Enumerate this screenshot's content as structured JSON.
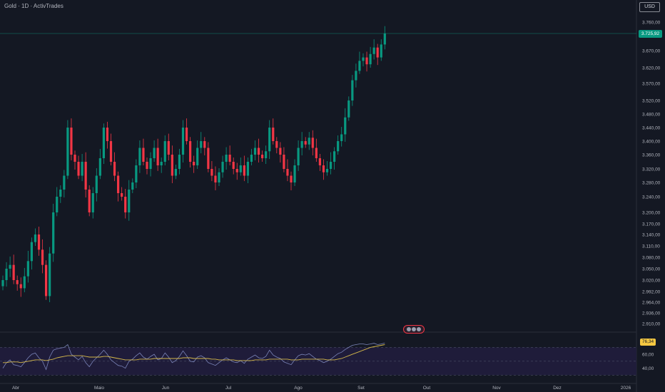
{
  "header": {
    "title": "Gold · 1D · ActivTrades"
  },
  "toolbar": {
    "currency": "USD"
  },
  "last_price_label": "3.725,92",
  "rsi_value_label": "76,34",
  "colors": {
    "background": "#141823",
    "up": "#089981",
    "down": "#f23645",
    "rsi_line": "#7a84b8",
    "rsi_ma": "#d6b94a",
    "rsi_band": "#1f1c3a",
    "price_line": "#089981"
  },
  "icons": {
    "event_badge": "flag-icons"
  },
  "chart_data": {
    "type": "candlestick",
    "y_ticks": [
      "3.760,00",
      "3.725,92",
      "3.670,00",
      "3.620,00",
      "3.570,00",
      "3.520,00",
      "3.480,00",
      "3.440,00",
      "3.400,00",
      "3.360,00",
      "3.320,00",
      "3.280,00",
      "3.240,00",
      "3.200,00",
      "3.170,00",
      "3.140,00",
      "3.110,00",
      "3.080,00",
      "3.050,00",
      "3.020,00",
      "2.992,00",
      "2.964,00",
      "2.936,00",
      "2.910,00"
    ],
    "x_ticks": [
      "Abr",
      "Maio",
      "Jun",
      "Jul",
      "Ago",
      "Set",
      "Out",
      "Nov",
      "Dez",
      "2026"
    ],
    "close": [
      3020,
      3050,
      3060,
      3020,
      3010,
      3000,
      3030,
      3070,
      3120,
      3140,
      3100,
      3060,
      2980,
      3090,
      3200,
      3240,
      3260,
      3300,
      3440,
      3360,
      3340,
      3300,
      3340,
      3260,
      3200,
      3250,
      3300,
      3350,
      3440,
      3400,
      3340,
      3300,
      3250,
      3240,
      3200,
      3260,
      3280,
      3330,
      3380,
      3340,
      3320,
      3350,
      3380,
      3330,
      3340,
      3400,
      3360,
      3300,
      3320,
      3360,
      3440,
      3400,
      3340,
      3330,
      3380,
      3400,
      3380,
      3320,
      3300,
      3280,
      3310,
      3340,
      3360,
      3340,
      3320,
      3310,
      3330,
      3300,
      3340,
      3360,
      3380,
      3360,
      3350,
      3370,
      3440,
      3400,
      3380,
      3360,
      3320,
      3300,
      3280,
      3330,
      3380,
      3400,
      3390,
      3410,
      3380,
      3350,
      3330,
      3310,
      3320,
      3340,
      3370,
      3400,
      3420,
      3470,
      3520,
      3580,
      3610,
      3640,
      3650,
      3630,
      3660,
      3680,
      3650,
      3690,
      3725.92
    ],
    "rsi": {
      "range": [
        0,
        100
      ],
      "levels": [
        70,
        30
      ],
      "tick_labels": [
        "80,00",
        "60,00",
        "40,00"
      ],
      "current": 76.34,
      "values": [
        40,
        48,
        52,
        45,
        44,
        42,
        48,
        55,
        60,
        62,
        55,
        50,
        38,
        56,
        66,
        68,
        69,
        70,
        74,
        60,
        56,
        52,
        57,
        48,
        42,
        50,
        55,
        60,
        66,
        60,
        52,
        48,
        44,
        43,
        40,
        50,
        53,
        58,
        62,
        56,
        53,
        57,
        60,
        52,
        54,
        62,
        56,
        48,
        51,
        57,
        65,
        58,
        50,
        49,
        56,
        58,
        55,
        48,
        46,
        44,
        48,
        52,
        55,
        52,
        49,
        48,
        51,
        47,
        53,
        56,
        59,
        55,
        54,
        57,
        66,
        59,
        56,
        54,
        49,
        47,
        45,
        52,
        58,
        60,
        59,
        61,
        57,
        53,
        51,
        48,
        50,
        53,
        57,
        61,
        63,
        67,
        70,
        73,
        74,
        75,
        75,
        74,
        75,
        76,
        74,
        75,
        76.34
      ],
      "ma": [
        48,
        48,
        49,
        49,
        49,
        48,
        49,
        50,
        51,
        52,
        52,
        52,
        51,
        52,
        53,
        55,
        56,
        57,
        58,
        58,
        58,
        58,
        58,
        57,
        56,
        56,
        56,
        56,
        57,
        57,
        56,
        55,
        54,
        53,
        52,
        52,
        52,
        52,
        53,
        53,
        53,
        53,
        54,
        54,
        54,
        54,
        54,
        54,
        54,
        54,
        55,
        55,
        55,
        54,
        54,
        54,
        54,
        54,
        53,
        53,
        52,
        52,
        52,
        52,
        52,
        51,
        51,
        51,
        51,
        51,
        52,
        52,
        52,
        52,
        53,
        53,
        53,
        53,
        53,
        53,
        52,
        52,
        52,
        53,
        53,
        53,
        53,
        53,
        53,
        53,
        52,
        52,
        52,
        53,
        54,
        56,
        58,
        60,
        62,
        64,
        66,
        68,
        70,
        71,
        72,
        73,
        74
      ]
    }
  }
}
